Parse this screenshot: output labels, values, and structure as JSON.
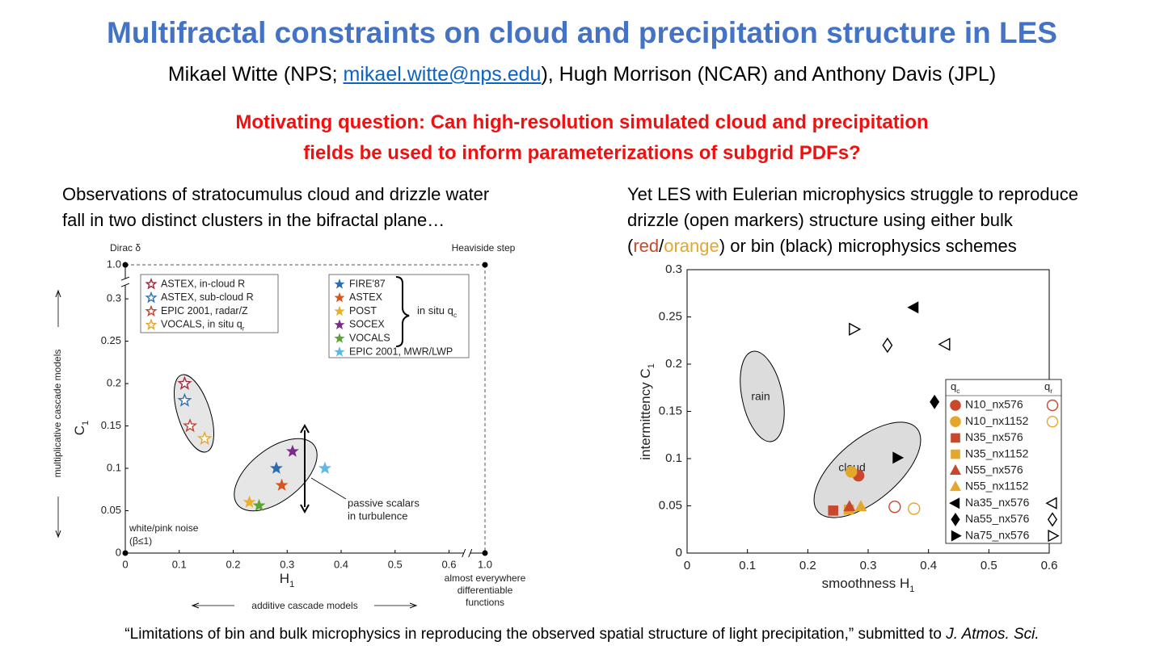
{
  "title": "Multifractal constraints on cloud and precipitation structure in LES",
  "authors": {
    "before": "Mikael Witte (NPS; ",
    "email": "mikael.witte@nps.edu",
    "after": "), Hugh Morrison (NCAR) and Anthony Davis (JPL)"
  },
  "question": [
    "Motivating question: Can high-resolution simulated cloud and precipitation",
    "fields be used to inform parameterizations of subgrid PDFs?"
  ],
  "left_caption": [
    "Observations of stratocumulus cloud and drizzle water",
    "fall in two distinct clusters in the bifractal plane…"
  ],
  "right_caption": {
    "lines": [
      "Yet LES with Eulerian microphysics struggle to reproduce",
      "drizzle (open markers) structure using either bulk"
    ],
    "last_line": [
      "(",
      "red",
      "/",
      "orange",
      ") or bin (black) microphysics schemes"
    ]
  },
  "footer": {
    "text": "“Limitations of bin and bulk microphysics in reproducing the observed spatial structure of light precipitation,” submitted to ",
    "journal": "J. Atmos. Sci."
  },
  "chart_data": [
    {
      "type": "scatter",
      "xlabel": {
        "text": "H",
        "sub": "1"
      },
      "ylabel": {
        "text": "C",
        "sub": "1"
      },
      "xlim": [
        0,
        1
      ],
      "ylim": [
        0,
        1
      ],
      "axis_break": true,
      "xticks": [
        0,
        0.1,
        0.2,
        0.3,
        0.4,
        0.5,
        0.6,
        {
          "value": 1,
          "label": "1.0"
        }
      ],
      "yticks": [
        0,
        0.05,
        0.1,
        0.15,
        0.2,
        0.25,
        0.3,
        {
          "value": 1,
          "label": "1.0"
        }
      ],
      "corner_labels": {
        "top_left": "Dirac δ",
        "top_right": "Heaviside step",
        "bottom_left": [
          "white/pink noise",
          "(β≤1)"
        ],
        "bottom_right": [
          "almost everywhere",
          "differentiable",
          "functions"
        ]
      },
      "y_arrow_label": "multiplicative cascade models",
      "x_arrow_label": "additive cascade models",
      "annotation": [
        "passive scalars",
        "in turbulence"
      ],
      "group_label": {
        "text": "in situ q",
        "sub": "c"
      },
      "series": [
        {
          "name": "ASTEX, in-cloud R",
          "color": "#a3283c",
          "marker": "star",
          "filled": false,
          "x": [
            0.11
          ],
          "values": [
            0.2
          ]
        },
        {
          "name": "ASTEX, sub-cloud R",
          "color": "#2e6fb2",
          "marker": "star",
          "filled": false,
          "x": [
            0.11
          ],
          "values": [
            0.18
          ]
        },
        {
          "name": "EPIC 2001, radar/Z",
          "color": "#c2412f",
          "marker": "star",
          "filled": false,
          "x": [
            0.12
          ],
          "values": [
            0.15
          ]
        },
        {
          "name": {
            "text": "VOCALS, in situ q",
            "sub": "r"
          },
          "color": "#e6a52e",
          "marker": "star",
          "filled": false,
          "x": [
            0.147
          ],
          "values": [
            0.135
          ]
        },
        {
          "name": "FIRE'87",
          "color": "#2b6cb0",
          "marker": "star",
          "filled": true,
          "x": [
            0.28
          ],
          "values": [
            0.1
          ]
        },
        {
          "name": "ASTEX",
          "color": "#d9541e",
          "marker": "star",
          "filled": true,
          "x": [
            0.29
          ],
          "values": [
            0.08
          ]
        },
        {
          "name": "POST",
          "color": "#eab02b",
          "marker": "star",
          "filled": true,
          "x": [
            0.23
          ],
          "values": [
            0.06
          ]
        },
        {
          "name": "SOCEX",
          "color": "#7a2a8a",
          "marker": "star",
          "filled": true,
          "x": [
            0.31
          ],
          "values": [
            0.12
          ]
        },
        {
          "name": "VOCALS",
          "color": "#5aa532",
          "marker": "star",
          "filled": true,
          "x": [
            0.248
          ],
          "values": [
            0.056
          ]
        },
        {
          "name": "EPIC 2001, MWR/LWP",
          "color": "#5bb8e8",
          "marker": "star",
          "filled": true,
          "x": [
            0.37
          ],
          "values": [
            0.1
          ]
        }
      ]
    },
    {
      "type": "scatter",
      "xlabel": {
        "text": "smoothness H",
        "sub": "1"
      },
      "ylabel": {
        "text": "intermittency C",
        "sub": "1"
      },
      "xlim": [
        0,
        0.6
      ],
      "ylim": [
        0,
        0.3
      ],
      "xticks": [
        0,
        0.1,
        0.2,
        0.3,
        0.4,
        0.5,
        0.6
      ],
      "yticks": [
        0,
        0.05,
        0.1,
        0.15,
        0.2,
        0.25,
        0.3
      ],
      "annotations": [
        "rain",
        "cloud"
      ],
      "legend_header": {
        "qc": {
          "text": "q",
          "sub": "c"
        },
        "qr": {
          "text": "q",
          "sub": "r"
        }
      },
      "series": [
        {
          "name": "N10_nx576",
          "color": "#c9472b",
          "marker": "circle",
          "qc_x": 0.284,
          "qc_y": 0.082,
          "qr_x": 0.344,
          "qr_y": 0.049
        },
        {
          "name": "N10_nx1152",
          "color": "#e3a82b",
          "marker": "circle",
          "qc_x": 0.272,
          "qc_y": 0.086,
          "qr_x": 0.376,
          "qr_y": 0.047
        },
        {
          "name": "N35_nx576",
          "color": "#c9472b",
          "marker": "square",
          "qc_x": 0.242,
          "qc_y": 0.045,
          "qr_x": null,
          "qr_y": null
        },
        {
          "name": "N35_nx1152",
          "color": "#e3a82b",
          "marker": "square",
          "qc_x": 0.268,
          "qc_y": 0.046,
          "qr_x": null,
          "qr_y": null
        },
        {
          "name": "N55_nx576",
          "color": "#c9472b",
          "marker": "triangle-up",
          "qc_x": 0.269,
          "qc_y": 0.049,
          "qr_x": null,
          "qr_y": null
        },
        {
          "name": "N55_nx1152",
          "color": "#e3a82b",
          "marker": "triangle-up",
          "qc_x": 0.288,
          "qc_y": 0.049,
          "qr_x": null,
          "qr_y": null
        },
        {
          "name": "Na35_nx576",
          "color": "#000000",
          "marker": "triangle-left",
          "qc_x": 0.376,
          "qc_y": 0.26,
          "qr_x": 0.428,
          "qr_y": 0.221
        },
        {
          "name": "Na55_nx576",
          "color": "#000000",
          "marker": "diamond",
          "qc_x": 0.41,
          "qc_y": 0.16,
          "qr_x": 0.332,
          "qr_y": 0.22
        },
        {
          "name": "Na75_nx576",
          "color": "#000000",
          "marker": "triangle-right",
          "qc_x": 0.348,
          "qc_y": 0.101,
          "qr_x": 0.276,
          "qr_y": 0.237
        }
      ]
    }
  ]
}
